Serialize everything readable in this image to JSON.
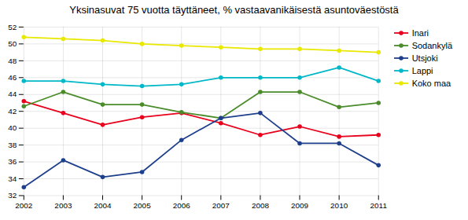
{
  "chart_data": {
    "type": "line",
    "title": "Yksinasuvat 75 vuotta täyttäneet, % vastaavanikäisestä asuntoväestöstä",
    "x": [
      2002,
      2003,
      2004,
      2005,
      2006,
      2007,
      2008,
      2009,
      2010,
      2011
    ],
    "series": [
      {
        "name": "Inari",
        "color": "#e8001c",
        "values": [
          43.2,
          41.8,
          40.4,
          41.3,
          41.8,
          40.6,
          39.2,
          40.2,
          39.0,
          39.2
        ]
      },
      {
        "name": "Sodankylä",
        "color": "#4a8c2a",
        "values": [
          42.6,
          44.3,
          42.8,
          42.8,
          41.9,
          41.2,
          44.3,
          44.3,
          42.5,
          43.0
        ]
      },
      {
        "name": "Utsjoki",
        "color": "#1e3f8c",
        "values": [
          33.0,
          36.2,
          34.2,
          34.8,
          38.6,
          41.2,
          41.8,
          38.2,
          38.2,
          35.6
        ]
      },
      {
        "name": "Lappi",
        "color": "#00b8c8",
        "values": [
          45.6,
          45.6,
          45.2,
          45.0,
          45.2,
          46.0,
          46.0,
          46.0,
          47.2,
          45.6
        ]
      },
      {
        "name": "Koko maa",
        "color": "#e8e800",
        "values": [
          50.8,
          50.6,
          50.4,
          50.0,
          49.8,
          49.6,
          49.4,
          49.4,
          49.2,
          49.0
        ]
      }
    ],
    "xlim": [
      2002,
      2011
    ],
    "xticks": [
      2002,
      2003,
      2004,
      2005,
      2006,
      2007,
      2008,
      2009,
      2010,
      2011
    ],
    "ylim": [
      32,
      52
    ],
    "yticks": [
      32,
      34,
      36,
      38,
      40,
      42,
      44,
      46,
      48,
      50,
      52
    ],
    "grid": true,
    "legend": "upper right",
    "marker": "circle"
  }
}
